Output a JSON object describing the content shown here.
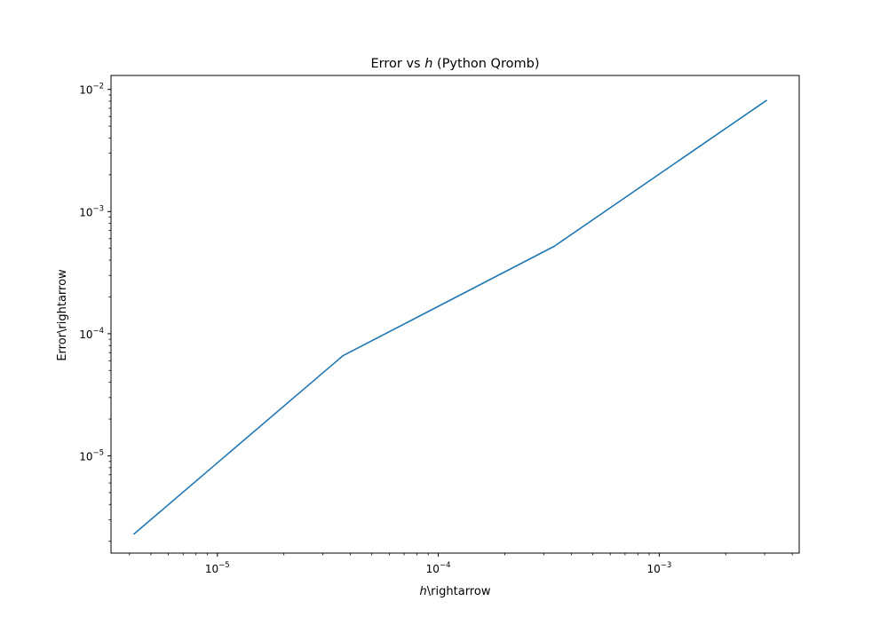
{
  "chart_data": {
    "type": "line",
    "title_prefix": "Error vs ",
    "title_var": "h",
    "title_suffix": " (Python Qromb)",
    "xlabel_var": "h",
    "xlabel_rest": "\\rightarrow",
    "ylabel": "Error\\rightarrow",
    "xscale": "log",
    "yscale": "log",
    "xlim": [
      3.3e-06,
      0.0043
    ],
    "ylim": [
      1.6e-06,
      0.013
    ],
    "grid": false,
    "legend": "none",
    "line_color": "#1f77b4",
    "x_ticks": [
      {
        "value": 1e-05,
        "base": "10",
        "exp": "−5"
      },
      {
        "value": 0.0001,
        "base": "10",
        "exp": "−4"
      },
      {
        "value": 0.001,
        "base": "10",
        "exp": "−3"
      }
    ],
    "y_ticks": [
      {
        "value": 1e-05,
        "base": "10",
        "exp": "−5"
      },
      {
        "value": 0.0001,
        "base": "10",
        "exp": "−4"
      },
      {
        "value": 0.001,
        "base": "10",
        "exp": "−3"
      },
      {
        "value": 0.01,
        "base": "10",
        "exp": "−2"
      }
    ],
    "series": [
      {
        "x": [
          4.2e-06,
          3.7e-05,
          0.000335,
          0.00305
        ],
        "y": [
          2.3e-06,
          6.6e-05,
          0.00052,
          0.0081
        ]
      }
    ]
  }
}
